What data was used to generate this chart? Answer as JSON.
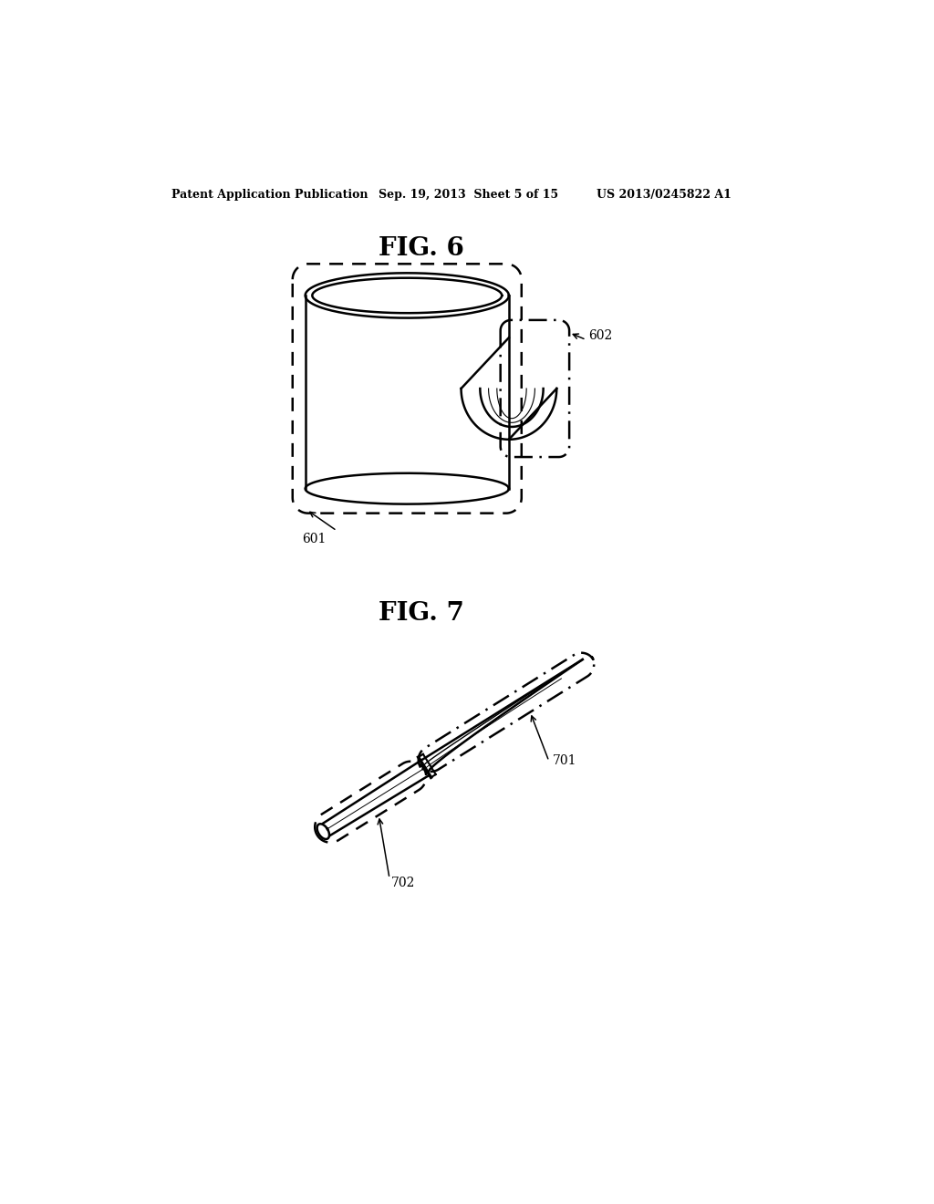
{
  "bg_color": "#ffffff",
  "header_text": "Patent Application Publication",
  "header_date": "Sep. 19, 2013  Sheet 5 of 15",
  "header_patent": "US 2013/0245822 A1",
  "fig6_title": "FIG. 6",
  "fig7_title": "FIG. 7",
  "label_601": "601",
  "label_602": "602",
  "label_701": "701",
  "label_702": "702",
  "line_color": "#000000"
}
